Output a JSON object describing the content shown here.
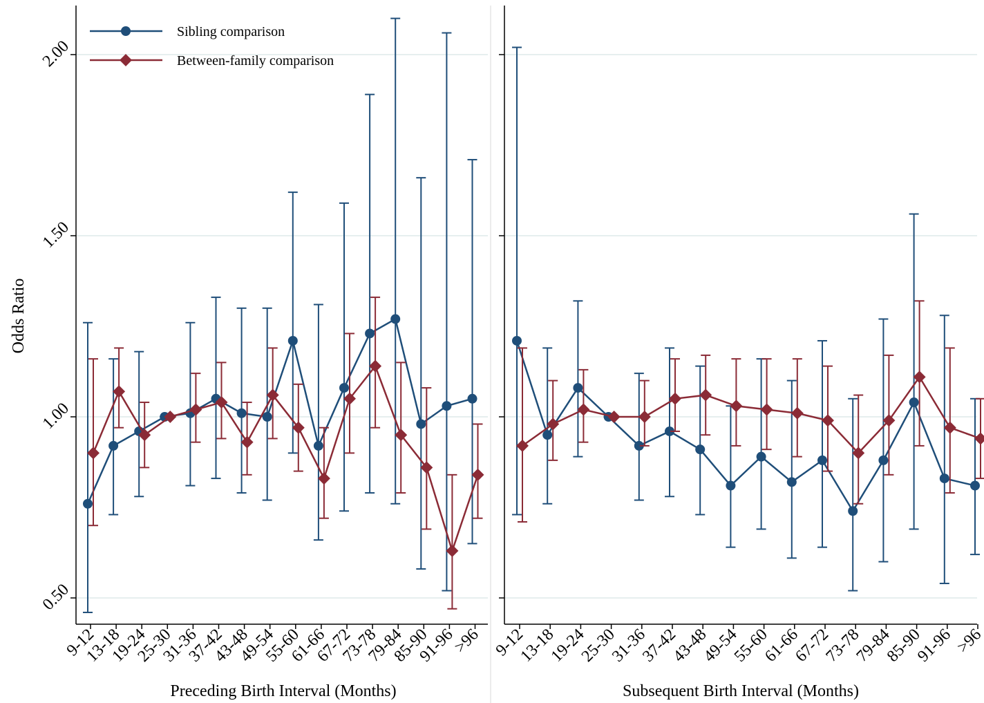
{
  "chart_data": {
    "type": "line",
    "ylabel": "Odds Ratio",
    "yticks": [
      0.5,
      1.0,
      1.5,
      2.0
    ],
    "ytick_labels": [
      "0.50",
      "1.00",
      "1.50",
      "2.00"
    ],
    "ylim": [
      0.43,
      2.14
    ],
    "grid": true,
    "legend_position": "top-left",
    "legend": [
      {
        "name": "Sibling comparison",
        "marker": "circle",
        "color": "#1f4e79"
      },
      {
        "name": "Between-family comparison",
        "marker": "diamond",
        "color": "#8b2b36"
      }
    ],
    "panels": [
      {
        "xlabel": "Preceding Birth Interval (Months)",
        "categories": [
          "9-12",
          "13-18",
          "19-24",
          "25-30",
          "31-36",
          "37-42",
          "43-48",
          "49-54",
          "55-60",
          "61-66",
          "67-72",
          "73-78",
          "79-84",
          "85-90",
          "91-96",
          ">96"
        ],
        "series": [
          {
            "name": "Sibling comparison",
            "values": [
              0.76,
              0.92,
              0.96,
              1.0,
              1.01,
              1.05,
              1.01,
              1.0,
              1.21,
              0.92,
              1.08,
              1.23,
              1.27,
              0.98,
              1.03,
              1.05
            ],
            "lower": [
              0.46,
              0.73,
              0.78,
              1.0,
              0.81,
              0.83,
              0.79,
              0.77,
              0.9,
              0.66,
              0.74,
              0.79,
              0.76,
              0.58,
              0.52,
              0.65
            ],
            "upper": [
              1.26,
              1.16,
              1.18,
              1.0,
              1.26,
              1.33,
              1.3,
              1.3,
              1.62,
              1.31,
              1.59,
              1.89,
              2.1,
              1.66,
              2.06,
              1.71
            ]
          },
          {
            "name": "Between-family comparison",
            "values": [
              0.9,
              1.07,
              0.95,
              1.0,
              1.02,
              1.04,
              0.93,
              1.06,
              0.97,
              0.83,
              1.05,
              1.14,
              0.95,
              0.86,
              0.63,
              0.84
            ],
            "lower": [
              0.7,
              0.97,
              0.86,
              1.0,
              0.93,
              0.94,
              0.84,
              0.94,
              0.85,
              0.72,
              0.9,
              0.97,
              0.79,
              0.69,
              0.47,
              0.72
            ],
            "upper": [
              1.16,
              1.19,
              1.04,
              1.0,
              1.12,
              1.15,
              1.04,
              1.19,
              1.09,
              0.97,
              1.23,
              1.33,
              1.15,
              1.08,
              0.84,
              0.98
            ]
          }
        ]
      },
      {
        "xlabel": "Subsequent Birth Interval (Months)",
        "categories": [
          "9-12",
          "13-18",
          "19-24",
          "25-30",
          "31-36",
          "37-42",
          "43-48",
          "49-54",
          "55-60",
          "61-66",
          "67-72",
          "73-78",
          "79-84",
          "85-90",
          "91-96",
          ">96"
        ],
        "series": [
          {
            "name": "Sibling comparison",
            "values": [
              1.21,
              0.95,
              1.08,
              1.0,
              0.92,
              0.96,
              0.91,
              0.81,
              0.89,
              0.82,
              0.88,
              0.74,
              0.88,
              1.04,
              0.83,
              0.81
            ],
            "lower": [
              0.73,
              0.76,
              0.89,
              1.0,
              0.77,
              0.78,
              0.73,
              0.64,
              0.69,
              0.61,
              0.64,
              0.52,
              0.6,
              0.69,
              0.54,
              0.62
            ],
            "upper": [
              2.02,
              1.19,
              1.32,
              1.0,
              1.12,
              1.19,
              1.14,
              1.03,
              1.16,
              1.1,
              1.21,
              1.05,
              1.27,
              1.56,
              1.28,
              1.05
            ]
          },
          {
            "name": "Between-family comparison",
            "values": [
              0.92,
              0.98,
              1.02,
              1.0,
              1.0,
              1.05,
              1.06,
              1.03,
              1.02,
              1.01,
              0.99,
              0.9,
              0.99,
              1.11,
              0.97,
              0.94
            ],
            "lower": [
              0.71,
              0.88,
              0.93,
              1.0,
              0.92,
              0.96,
              0.95,
              0.92,
              0.91,
              0.89,
              0.85,
              0.76,
              0.84,
              0.92,
              0.79,
              0.83
            ],
            "upper": [
              1.19,
              1.1,
              1.13,
              1.0,
              1.1,
              1.16,
              1.17,
              1.16,
              1.16,
              1.16,
              1.14,
              1.06,
              1.17,
              1.32,
              1.19,
              1.05
            ]
          }
        ]
      }
    ]
  }
}
